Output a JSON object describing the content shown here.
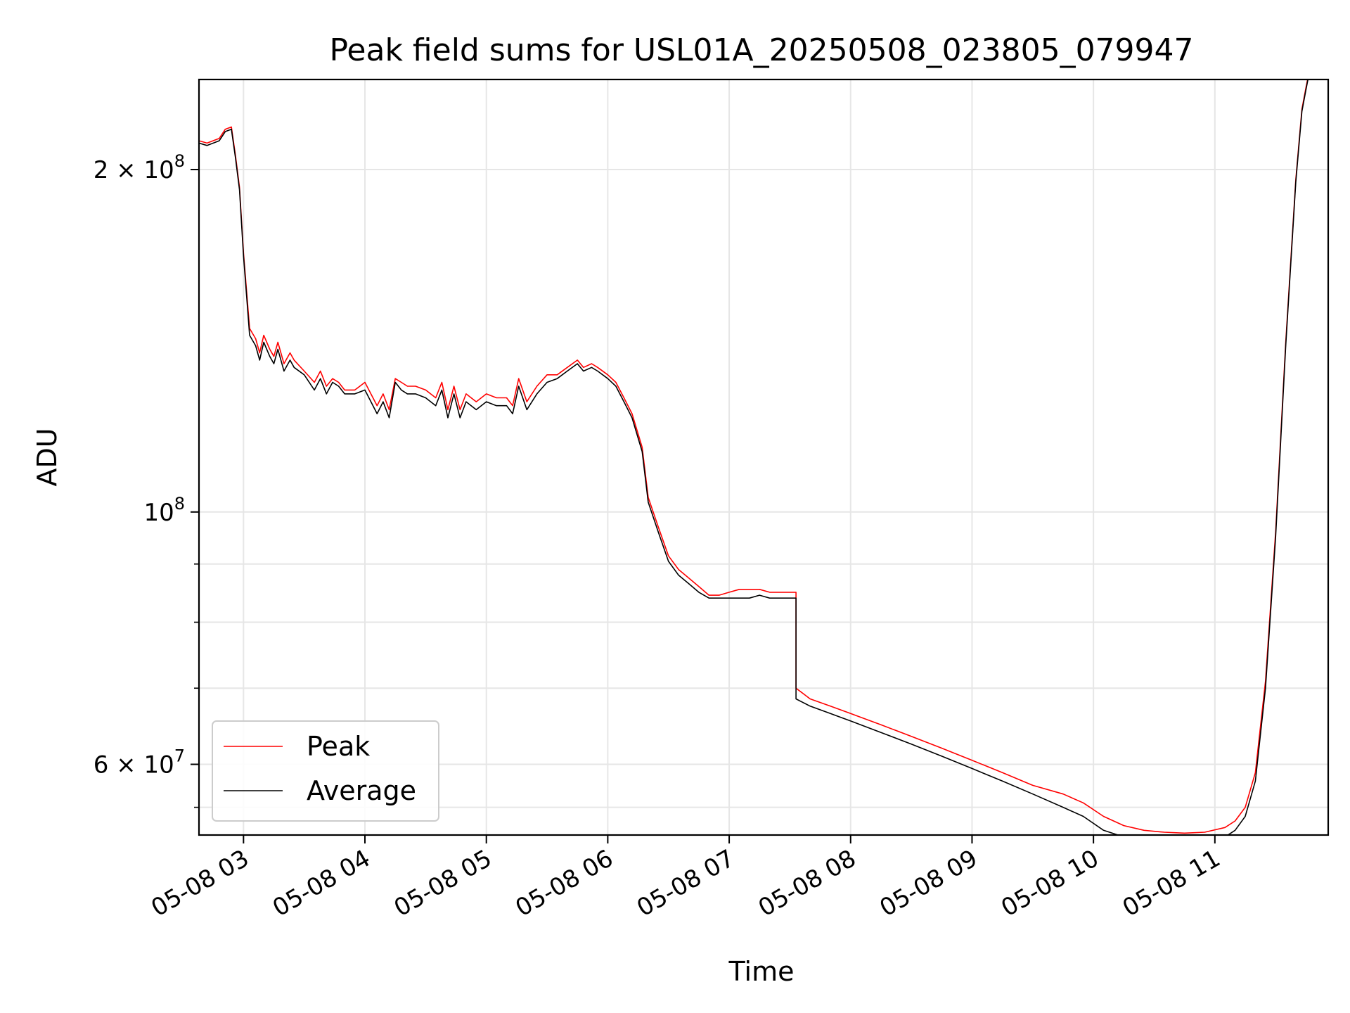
{
  "chart_data": {
    "type": "line",
    "title": "Peak field sums for USL01A_20250508_023805_079947",
    "xlabel": "Time",
    "ylabel": "ADU",
    "x_scale": "time",
    "y_scale": "log",
    "xlim": [
      "2025-05-08 02:38",
      "2025-05-08 11:56"
    ],
    "ylim": [
      52000000,
      240000000
    ],
    "grid": true,
    "legend_position": "lower-left",
    "colors": {
      "Peak": "#ff0000",
      "Average": "#000000"
    },
    "x_ticks": [
      {
        "label": "05-08 03",
        "time": "2025-05-08 03:00"
      },
      {
        "label": "05-08 04",
        "time": "2025-05-08 04:00"
      },
      {
        "label": "05-08 05",
        "time": "2025-05-08 05:00"
      },
      {
        "label": "05-08 06",
        "time": "2025-05-08 06:00"
      },
      {
        "label": "05-08 07",
        "time": "2025-05-08 07:00"
      },
      {
        "label": "05-08 08",
        "time": "2025-05-08 08:00"
      },
      {
        "label": "05-08 09",
        "time": "2025-05-08 09:00"
      },
      {
        "label": "05-08 10",
        "time": "2025-05-08 10:00"
      },
      {
        "label": "05-08 11",
        "time": "2025-05-08 11:00"
      }
    ],
    "y_ticks_major": [
      {
        "label_mantissa": "2 × 10",
        "label_exp": "8",
        "value": 200000000
      },
      {
        "label_mantissa": "10",
        "label_exp": "8",
        "value": 100000000
      },
      {
        "label_mantissa": "6 × 10",
        "label_exp": "7",
        "value": 60000000
      }
    ],
    "y_ticks_minor": [
      55000000,
      70000000,
      80000000,
      90000000
    ],
    "series": [
      {
        "name": "Average",
        "x": [
          "2025-05-08 02:38",
          "2025-05-08 02:42",
          "2025-05-08 02:48",
          "2025-05-08 02:51",
          "2025-05-08 02:54",
          "2025-05-08 02:56",
          "2025-05-08 02:58",
          "2025-05-08 03:00",
          "2025-05-08 03:03",
          "2025-05-08 03:06",
          "2025-05-08 03:08",
          "2025-05-08 03:10",
          "2025-05-08 03:13",
          "2025-05-08 03:15",
          "2025-05-08 03:17",
          "2025-05-08 03:20",
          "2025-05-08 03:23",
          "2025-05-08 03:25",
          "2025-05-08 03:30",
          "2025-05-08 03:35",
          "2025-05-08 03:38",
          "2025-05-08 03:41",
          "2025-05-08 03:44",
          "2025-05-08 03:47",
          "2025-05-08 03:50",
          "2025-05-08 03:55",
          "2025-05-08 04:00",
          "2025-05-08 04:06",
          "2025-05-08 04:09",
          "2025-05-08 04:12",
          "2025-05-08 04:15",
          "2025-05-08 04:18",
          "2025-05-08 04:21",
          "2025-05-08 04:25",
          "2025-05-08 04:30",
          "2025-05-08 04:35",
          "2025-05-08 04:38",
          "2025-05-08 04:41",
          "2025-05-08 04:44",
          "2025-05-08 04:47",
          "2025-05-08 04:50",
          "2025-05-08 04:55",
          "2025-05-08 05:00",
          "2025-05-08 05:05",
          "2025-05-08 05:10",
          "2025-05-08 05:13",
          "2025-05-08 05:16",
          "2025-05-08 05:20",
          "2025-05-08 05:25",
          "2025-05-08 05:30",
          "2025-05-08 05:35",
          "2025-05-08 05:40",
          "2025-05-08 05:45",
          "2025-05-08 05:48",
          "2025-05-08 05:52",
          "2025-05-08 05:55",
          "2025-05-08 06:00",
          "2025-05-08 06:04",
          "2025-05-08 06:08",
          "2025-05-08 06:12",
          "2025-05-08 06:17",
          "2025-05-08 06:20",
          "2025-05-08 06:25",
          "2025-05-08 06:30",
          "2025-05-08 06:35",
          "2025-05-08 06:40",
          "2025-05-08 06:45",
          "2025-05-08 06:50",
          "2025-05-08 06:55",
          "2025-05-08 07:00",
          "2025-05-08 07:05",
          "2025-05-08 07:10",
          "2025-05-08 07:15",
          "2025-05-08 07:20",
          "2025-05-08 07:23",
          "2025-05-08 07:33",
          "2025-05-08 07:33",
          "2025-05-08 07:40",
          "2025-05-08 07:50",
          "2025-05-08 08:00",
          "2025-05-08 08:15",
          "2025-05-08 08:30",
          "2025-05-08 08:45",
          "2025-05-08 09:00",
          "2025-05-08 09:15",
          "2025-05-08 09:30",
          "2025-05-08 09:45",
          "2025-05-08 09:55",
          "2025-05-08 10:05",
          "2025-05-08 10:15",
          "2025-05-08 10:25",
          "2025-05-08 10:35",
          "2025-05-08 10:45",
          "2025-05-08 10:55",
          "2025-05-08 11:05",
          "2025-05-08 11:10",
          "2025-05-08 11:15",
          "2025-05-08 11:20",
          "2025-05-08 11:25",
          "2025-05-08 11:30",
          "2025-05-08 11:35",
          "2025-05-08 11:40",
          "2025-05-08 11:43",
          "2025-05-08 11:45",
          "2025-05-08 11:46"
        ],
        "y": [
          211000000,
          210000000,
          212000000,
          216000000,
          217000000,
          205000000,
          192000000,
          168000000,
          143000000,
          140000000,
          136000000,
          141000000,
          137000000,
          135000000,
          139000000,
          133000000,
          136000000,
          134000000,
          132000000,
          128000000,
          131000000,
          127000000,
          130000000,
          129000000,
          127000000,
          127000000,
          128000000,
          122000000,
          125000000,
          121000000,
          130000000,
          128000000,
          127000000,
          127000000,
          126000000,
          124000000,
          128000000,
          121000000,
          127000000,
          121000000,
          125000000,
          123000000,
          125000000,
          124000000,
          124000000,
          122000000,
          129000000,
          123000000,
          127000000,
          130000000,
          131000000,
          133000000,
          135000000,
          133000000,
          134000000,
          133000000,
          131000000,
          129000000,
          125000000,
          121000000,
          113000000,
          102000000,
          96000000,
          90500000,
          88000000,
          86500000,
          85000000,
          84000000,
          84000000,
          84000000,
          84000000,
          84000000,
          84500000,
          84000000,
          84000000,
          84000000,
          68500000,
          67500000,
          66500000,
          65500000,
          64000000,
          62500000,
          61000000,
          59500000,
          58000000,
          56500000,
          55000000,
          54000000,
          52500000,
          51800000,
          51500000,
          51300000,
          51200000,
          51300000,
          51800000,
          52500000,
          54000000,
          58000000,
          70000000,
          95000000,
          140000000,
          195000000,
          225000000,
          235000000,
          240000000
        ]
      },
      {
        "name": "Peak",
        "x": [
          "2025-05-08 02:38",
          "2025-05-08 02:42",
          "2025-05-08 02:48",
          "2025-05-08 02:51",
          "2025-05-08 02:54",
          "2025-05-08 02:56",
          "2025-05-08 02:58",
          "2025-05-08 03:00",
          "2025-05-08 03:03",
          "2025-05-08 03:06",
          "2025-05-08 03:08",
          "2025-05-08 03:10",
          "2025-05-08 03:13",
          "2025-05-08 03:15",
          "2025-05-08 03:17",
          "2025-05-08 03:20",
          "2025-05-08 03:23",
          "2025-05-08 03:25",
          "2025-05-08 03:30",
          "2025-05-08 03:35",
          "2025-05-08 03:38",
          "2025-05-08 03:41",
          "2025-05-08 03:44",
          "2025-05-08 03:47",
          "2025-05-08 03:50",
          "2025-05-08 03:55",
          "2025-05-08 04:00",
          "2025-05-08 04:06",
          "2025-05-08 04:09",
          "2025-05-08 04:12",
          "2025-05-08 04:15",
          "2025-05-08 04:18",
          "2025-05-08 04:21",
          "2025-05-08 04:25",
          "2025-05-08 04:30",
          "2025-05-08 04:35",
          "2025-05-08 04:38",
          "2025-05-08 04:41",
          "2025-05-08 04:44",
          "2025-05-08 04:47",
          "2025-05-08 04:50",
          "2025-05-08 04:55",
          "2025-05-08 05:00",
          "2025-05-08 05:05",
          "2025-05-08 05:10",
          "2025-05-08 05:13",
          "2025-05-08 05:16",
          "2025-05-08 05:20",
          "2025-05-08 05:25",
          "2025-05-08 05:30",
          "2025-05-08 05:35",
          "2025-05-08 05:40",
          "2025-05-08 05:45",
          "2025-05-08 05:48",
          "2025-05-08 05:52",
          "2025-05-08 05:55",
          "2025-05-08 06:00",
          "2025-05-08 06:04",
          "2025-05-08 06:08",
          "2025-05-08 06:12",
          "2025-05-08 06:17",
          "2025-05-08 06:20",
          "2025-05-08 06:25",
          "2025-05-08 06:30",
          "2025-05-08 06:35",
          "2025-05-08 06:40",
          "2025-05-08 06:45",
          "2025-05-08 06:50",
          "2025-05-08 06:55",
          "2025-05-08 07:00",
          "2025-05-08 07:05",
          "2025-05-08 07:10",
          "2025-05-08 07:15",
          "2025-05-08 07:20",
          "2025-05-08 07:23",
          "2025-05-08 07:33",
          "2025-05-08 07:33",
          "2025-05-08 07:40",
          "2025-05-08 07:50",
          "2025-05-08 08:00",
          "2025-05-08 08:15",
          "2025-05-08 08:30",
          "2025-05-08 08:45",
          "2025-05-08 09:00",
          "2025-05-08 09:15",
          "2025-05-08 09:30",
          "2025-05-08 09:45",
          "2025-05-08 09:55",
          "2025-05-08 10:05",
          "2025-05-08 10:15",
          "2025-05-08 10:25",
          "2025-05-08 10:35",
          "2025-05-08 10:45",
          "2025-05-08 10:55",
          "2025-05-08 11:05",
          "2025-05-08 11:10",
          "2025-05-08 11:15",
          "2025-05-08 11:20",
          "2025-05-08 11:25",
          "2025-05-08 11:30",
          "2025-05-08 11:35",
          "2025-05-08 11:40",
          "2025-05-08 11:43",
          "2025-05-08 11:45",
          "2025-05-08 11:46"
        ],
        "y": [
          212000000,
          211000000,
          213000000,
          217000000,
          218000000,
          206000000,
          193000000,
          169000000,
          145000000,
          142000000,
          138000000,
          143000000,
          139000000,
          137000000,
          141000000,
          135000000,
          138000000,
          136000000,
          133000000,
          130000000,
          133000000,
          129000000,
          131000000,
          130000000,
          128000000,
          128000000,
          130000000,
          124000000,
          127000000,
          123000000,
          131000000,
          130000000,
          129000000,
          129000000,
          128000000,
          126000000,
          130000000,
          123000000,
          129000000,
          123000000,
          127000000,
          125000000,
          127000000,
          126000000,
          126000000,
          124000000,
          131000000,
          125000000,
          129000000,
          132000000,
          132000000,
          134000000,
          136000000,
          134000000,
          135000000,
          134000000,
          132000000,
          130000000,
          126000000,
          122000000,
          114000000,
          103000000,
          97000000,
          91500000,
          89000000,
          87500000,
          86000000,
          84500000,
          84500000,
          85000000,
          85500000,
          85500000,
          85500000,
          85000000,
          85000000,
          85000000,
          70000000,
          68500000,
          67500000,
          66500000,
          65000000,
          63500000,
          62000000,
          60500000,
          59000000,
          57500000,
          56500000,
          55500000,
          54000000,
          53000000,
          52500000,
          52300000,
          52200000,
          52300000,
          52800000,
          53500000,
          55000000,
          59000000,
          71000000,
          96000000,
          141000000,
          196000000,
          226000000,
          236000000,
          241000000
        ]
      }
    ]
  }
}
